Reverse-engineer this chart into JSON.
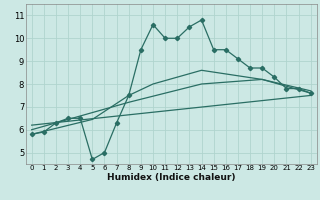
{
  "xlabel": "Humidex (Indice chaleur)",
  "bg_color": "#cce8e4",
  "grid_color": "#b0d4ce",
  "line_color": "#2a6e64",
  "xlim": [
    -0.5,
    23.5
  ],
  "ylim": [
    4.5,
    11.5
  ],
  "yticks": [
    5,
    6,
    7,
    8,
    9,
    10,
    11
  ],
  "xticks": [
    0,
    1,
    2,
    3,
    4,
    5,
    6,
    7,
    8,
    9,
    10,
    11,
    12,
    13,
    14,
    15,
    16,
    17,
    18,
    19,
    20,
    21,
    22,
    23
  ],
  "line1_x": [
    0,
    1,
    2,
    3,
    4,
    5,
    6,
    7,
    8,
    9,
    10,
    11,
    12,
    13,
    14,
    15,
    16,
    17,
    18,
    19,
    20,
    21,
    22,
    23
  ],
  "line1_y": [
    5.8,
    5.9,
    6.3,
    6.5,
    6.5,
    4.7,
    5.0,
    6.3,
    7.5,
    9.5,
    10.6,
    10.0,
    10.0,
    10.5,
    10.8,
    9.5,
    9.5,
    9.1,
    8.7,
    8.7,
    8.3,
    7.8,
    7.8,
    7.6
  ],
  "line2_x": [
    0,
    5,
    8,
    10,
    12,
    14,
    19,
    21,
    23
  ],
  "line2_y": [
    5.8,
    6.45,
    7.5,
    8.0,
    8.3,
    8.6,
    8.2,
    7.9,
    7.6
  ],
  "line3_x": [
    0,
    8,
    14,
    19,
    23
  ],
  "line3_y": [
    6.0,
    7.2,
    8.0,
    8.2,
    7.7
  ],
  "line4_x": [
    0,
    23
  ],
  "line4_y": [
    6.2,
    7.5
  ]
}
